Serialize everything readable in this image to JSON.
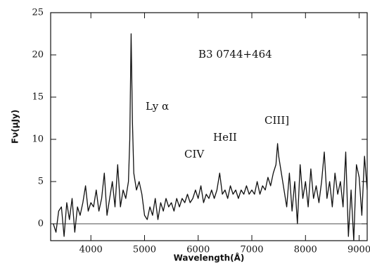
{
  "chart_data": {
    "type": "line",
    "title": "B3 0744+464",
    "x_label": "Wavelength(Å)",
    "y_label": "Fν(μJy)",
    "annotations": [
      "Ly α",
      "CIV",
      "HeII",
      "CIII]"
    ],
    "xlim": [
      3250,
      9150
    ],
    "ylim": [
      -2,
      25
    ],
    "xticks": [
      4000,
      5000,
      6000,
      7000,
      8000,
      9000
    ],
    "yticks": [
      0,
      5,
      10,
      15,
      20,
      25
    ],
    "reference_line": 0,
    "color": "#111111",
    "x": [
      3300,
      3350,
      3400,
      3450,
      3500,
      3550,
      3600,
      3650,
      3700,
      3750,
      3800,
      3850,
      3900,
      3950,
      4000,
      4050,
      4100,
      4150,
      4200,
      4250,
      4300,
      4350,
      4400,
      4450,
      4500,
      4550,
      4600,
      4650,
      4700,
      4725,
      4750,
      4775,
      4800,
      4850,
      4900,
      4950,
      5000,
      5050,
      5100,
      5150,
      5200,
      5250,
      5300,
      5350,
      5400,
      5450,
      5500,
      5550,
      5600,
      5650,
      5700,
      5750,
      5800,
      5850,
      5900,
      5950,
      6000,
      6050,
      6100,
      6150,
      6200,
      6250,
      6300,
      6350,
      6400,
      6450,
      6500,
      6550,
      6600,
      6650,
      6700,
      6750,
      6800,
      6850,
      6900,
      6950,
      7000,
      7050,
      7100,
      7150,
      7200,
      7250,
      7300,
      7350,
      7400,
      7450,
      7480,
      7500,
      7550,
      7600,
      7650,
      7700,
      7750,
      7800,
      7850,
      7900,
      7950,
      8000,
      8050,
      8100,
      8150,
      8200,
      8250,
      8300,
      8350,
      8400,
      8450,
      8500,
      8550,
      8600,
      8650,
      8700,
      8750,
      8800,
      8850,
      8900,
      8950,
      9000,
      9050,
      9100,
      9150
    ],
    "values": [
      0,
      -1,
      1.5,
      2,
      -1.5,
      2.5,
      0.5,
      3,
      -1,
      2,
      1,
      2.5,
      4.5,
      1.5,
      2.5,
      2,
      4,
      1.5,
      3,
      6,
      1,
      3,
      5,
      2,
      7,
      2,
      4,
      3,
      5,
      10,
      22.5,
      12,
      6,
      4,
      5,
      3.5,
      1,
      0.5,
      2,
      1,
      3,
      0.5,
      2.5,
      1.5,
      3,
      2,
      2.5,
      1.5,
      3,
      2,
      3,
      2.5,
      3.5,
      2.5,
      3,
      4,
      3,
      4.5,
      2.5,
      3.5,
      3,
      4,
      3,
      4,
      6,
      3.5,
      4,
      3,
      4.5,
      3.5,
      4,
      3,
      4,
      3.5,
      4.5,
      3.5,
      4,
      3.5,
      5,
      3.5,
      4.5,
      4,
      5.5,
      4.5,
      6,
      7,
      9.5,
      8,
      6,
      4,
      2,
      6,
      1.5,
      5,
      0,
      7,
      3,
      5,
      2,
      6.5,
      3,
      4.5,
      2.5,
      5,
      8.5,
      3,
      5,
      2,
      6,
      3.5,
      5,
      2,
      8.5,
      -1.5,
      4,
      -2,
      7,
      5.5,
      1,
      8,
      4
    ]
  }
}
